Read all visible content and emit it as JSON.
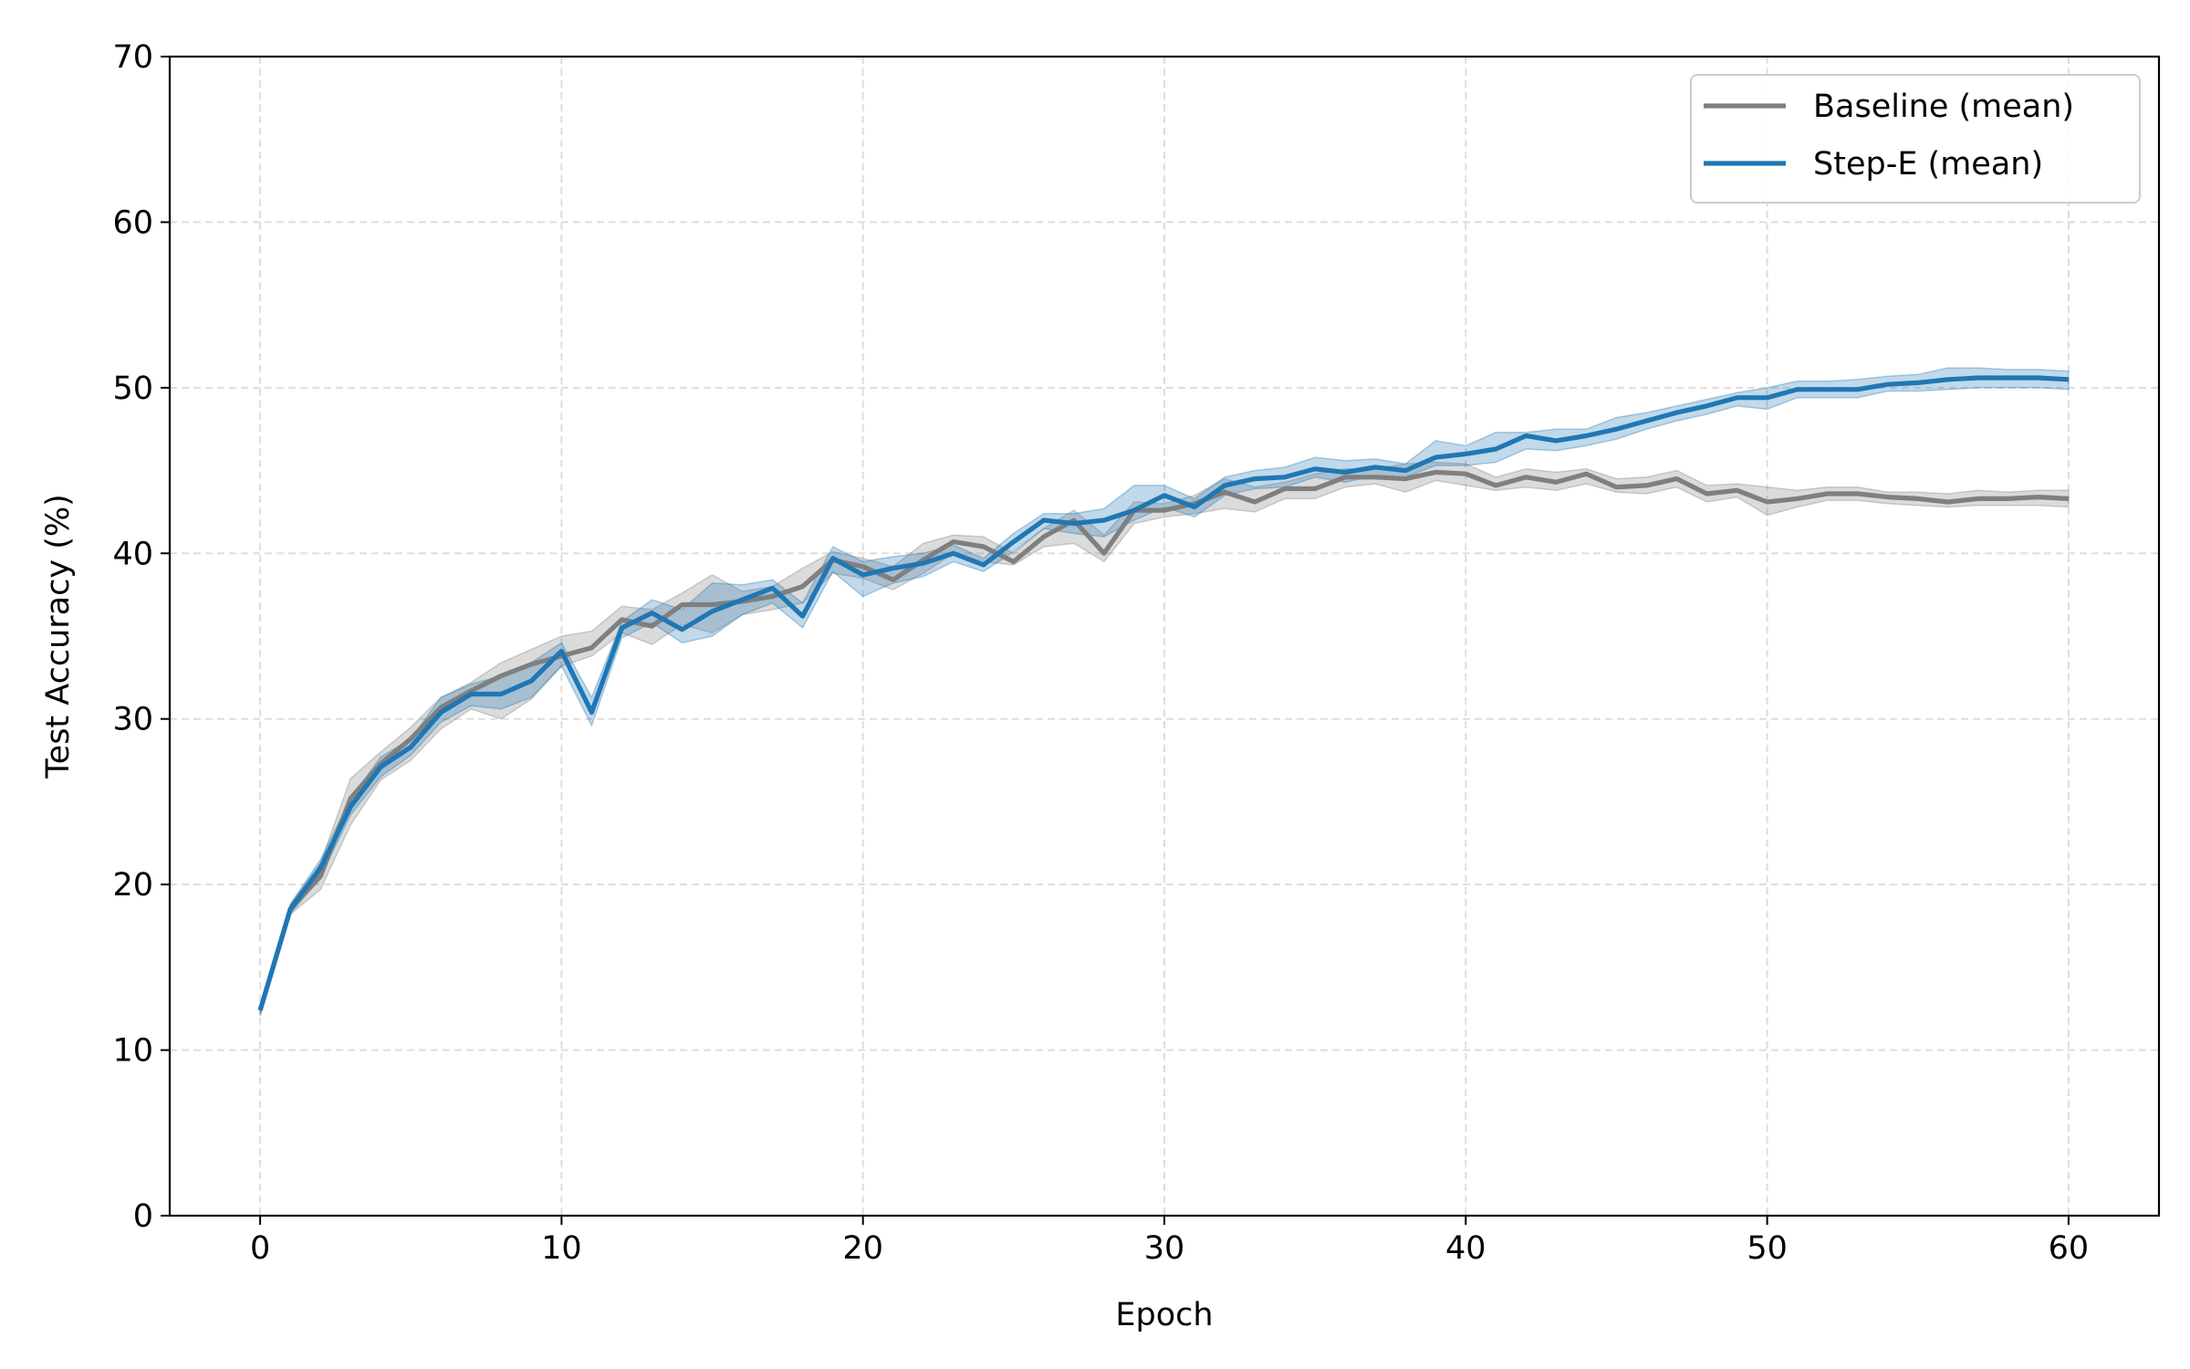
{
  "chart_data": {
    "type": "line",
    "xlabel": "Epoch",
    "ylabel": "Test Accuracy (%)",
    "xlim": [
      -3,
      63
    ],
    "ylim": [
      0,
      70
    ],
    "xticks": [
      0,
      10,
      20,
      30,
      40,
      50,
      60
    ],
    "yticks": [
      0,
      10,
      20,
      30,
      40,
      50,
      60,
      70
    ],
    "grid": true,
    "legend_position": "top-right",
    "x": [
      0,
      1,
      2,
      3,
      4,
      5,
      6,
      7,
      8,
      9,
      10,
      11,
      12,
      13,
      14,
      15,
      16,
      17,
      18,
      19,
      20,
      21,
      22,
      23,
      24,
      25,
      26,
      27,
      28,
      29,
      30,
      31,
      32,
      33,
      34,
      35,
      36,
      37,
      38,
      39,
      40,
      41,
      42,
      43,
      44,
      45,
      46,
      47,
      48,
      49,
      50,
      51,
      52,
      53,
      54,
      55,
      56,
      57,
      58,
      59,
      60
    ],
    "series": [
      {
        "name": "Baseline (mean)",
        "color": "#7f7f7f",
        "band_color": "#7f7f7f",
        "values": [
          12.4,
          18.5,
          20.5,
          25.2,
          27.3,
          28.8,
          30.7,
          31.7,
          32.6,
          33.3,
          33.8,
          34.3,
          36.0,
          35.6,
          36.9,
          36.9,
          37.1,
          37.4,
          38.0,
          39.6,
          39.2,
          38.4,
          39.6,
          40.7,
          40.4,
          39.5,
          41.0,
          42.0,
          40.0,
          42.6,
          42.6,
          43.0,
          43.7,
          43.1,
          43.9,
          43.9,
          44.6,
          44.6,
          44.5,
          44.9,
          44.8,
          44.1,
          44.6,
          44.3,
          44.8,
          44.0,
          44.1,
          44.5,
          43.6,
          43.8,
          43.1,
          43.3,
          43.6,
          43.6,
          43.4,
          43.3,
          43.1,
          43.3,
          43.3,
          43.4,
          43.3
        ],
        "lower": [
          12.1,
          18.2,
          19.7,
          23.6,
          26.3,
          27.5,
          29.4,
          30.6,
          30.0,
          31.2,
          33.2,
          33.8,
          35.2,
          34.5,
          35.7,
          35.2,
          36.3,
          36.6,
          37.0,
          38.8,
          38.5,
          37.8,
          38.8,
          40.0,
          39.5,
          39.3,
          40.4,
          40.6,
          39.5,
          41.8,
          42.2,
          42.4,
          42.7,
          42.5,
          43.3,
          43.3,
          44.0,
          44.2,
          43.7,
          44.4,
          44.1,
          43.8,
          44.0,
          43.8,
          44.2,
          43.7,
          43.6,
          44.0,
          43.1,
          43.4,
          42.3,
          42.8,
          43.2,
          43.2,
          43.0,
          42.9,
          42.8,
          42.9,
          42.9,
          42.9,
          42.8
        ],
        "upper": [
          12.7,
          18.8,
          21.3,
          26.4,
          28.0,
          29.5,
          31.3,
          32.2,
          33.4,
          34.2,
          35.0,
          35.3,
          36.8,
          36.6,
          37.6,
          38.7,
          37.7,
          38.0,
          39.1,
          40.1,
          39.7,
          39.2,
          40.6,
          41.1,
          41.0,
          40.0,
          41.5,
          42.6,
          41.1,
          43.1,
          43.0,
          43.5,
          44.5,
          44.0,
          44.3,
          44.8,
          45.1,
          45.1,
          45.4,
          45.5,
          45.4,
          44.6,
          45.1,
          44.9,
          45.1,
          44.5,
          44.6,
          45.0,
          44.1,
          44.2,
          44.0,
          43.8,
          44.0,
          44.0,
          43.7,
          43.7,
          43.6,
          43.8,
          43.7,
          43.8,
          43.8
        ]
      },
      {
        "name": "Step-E (mean)",
        "color": "#1f77b4",
        "band_color": "#1f77b4",
        "values": [
          12.4,
          18.5,
          21.0,
          24.7,
          27.1,
          28.3,
          30.4,
          31.5,
          31.5,
          32.3,
          34.1,
          30.4,
          35.5,
          36.4,
          35.4,
          36.5,
          37.2,
          37.9,
          36.2,
          39.7,
          38.7,
          39.1,
          39.4,
          40.0,
          39.3,
          40.7,
          42.0,
          41.8,
          42.0,
          42.6,
          43.5,
          42.8,
          44.1,
          44.5,
          44.6,
          45.1,
          44.9,
          45.2,
          45.0,
          45.8,
          46.0,
          46.3,
          47.1,
          46.8,
          47.1,
          47.5,
          48.0,
          48.5,
          48.9,
          49.4,
          49.4,
          49.9,
          49.9,
          49.9,
          50.2,
          50.3,
          50.5,
          50.6,
          50.6,
          50.6,
          50.5
        ],
        "lower": [
          12.1,
          18.2,
          20.5,
          24.2,
          26.5,
          27.8,
          29.8,
          30.8,
          30.6,
          31.3,
          33.2,
          29.6,
          34.9,
          35.8,
          34.6,
          35.0,
          36.3,
          37.0,
          35.5,
          38.9,
          37.4,
          38.2,
          38.6,
          39.5,
          38.9,
          40.1,
          41.5,
          41.2,
          41.0,
          42.0,
          42.8,
          42.2,
          43.5,
          43.9,
          44.0,
          44.6,
          44.3,
          44.7,
          44.6,
          45.3,
          45.3,
          45.5,
          46.3,
          46.2,
          46.5,
          46.9,
          47.5,
          48.0,
          48.4,
          48.9,
          48.7,
          49.4,
          49.4,
          49.4,
          49.8,
          49.8,
          49.9,
          50.0,
          50.0,
          50.0,
          49.9
        ],
        "upper": [
          12.7,
          18.8,
          21.5,
          25.2,
          27.7,
          28.8,
          31.3,
          32.1,
          32.6,
          33.4,
          34.6,
          31.3,
          35.9,
          37.2,
          36.6,
          38.2,
          38.1,
          38.4,
          37.0,
          40.4,
          39.5,
          39.8,
          40.0,
          40.5,
          39.7,
          41.2,
          42.4,
          42.4,
          42.7,
          44.1,
          44.1,
          43.3,
          44.6,
          45.0,
          45.2,
          45.8,
          45.6,
          45.7,
          45.4,
          46.8,
          46.5,
          47.3,
          47.3,
          47.5,
          47.5,
          48.2,
          48.5,
          48.9,
          49.3,
          49.7,
          50.0,
          50.4,
          50.4,
          50.5,
          50.7,
          50.8,
          51.2,
          51.2,
          51.1,
          51.1,
          51.0
        ]
      }
    ]
  }
}
